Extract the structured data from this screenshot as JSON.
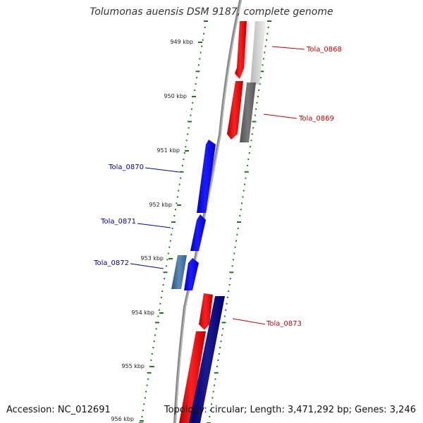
{
  "title": "Tolumonas auensis DSM 9187, complete genome",
  "footer": {
    "accession": "Accession: NC_012691",
    "summary": "Topology: circular; Length: 3,471,292 bp; Genes: 3,246"
  },
  "colors": {
    "backbone": "#888888",
    "tick": "#1a7a1a",
    "forward_gene": "#ff0000",
    "reverse_gene": "#0000ff",
    "forward_label": "#cc0000",
    "reverse_label": "#0000aa"
  },
  "scale_labels": [
    "949 kbp",
    "950 kbp",
    "951 kbp",
    "952 kbp",
    "953 kbp",
    "954 kbp",
    "955 kbp",
    "956 kbp"
  ],
  "genes": [
    {
      "name": "Tola_0868",
      "strand": "+"
    },
    {
      "name": "Tola_0869",
      "strand": "+"
    },
    {
      "name": "Tola_0870",
      "strand": "-"
    },
    {
      "name": "Tola_0871",
      "strand": "-"
    },
    {
      "name": "Tola_0872",
      "strand": "-"
    },
    {
      "name": "Tola_0873",
      "strand": "+"
    }
  ]
}
